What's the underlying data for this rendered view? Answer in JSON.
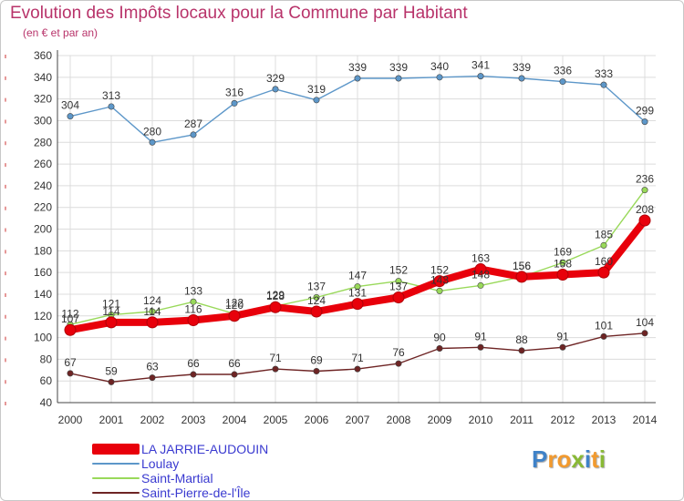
{
  "title": "Evolution des Impôts locaux pour la Commune par Habitant",
  "subtitle": "(en € et par an)",
  "brand": {
    "letters": [
      {
        "ch": "P",
        "color": "#3f82c8"
      },
      {
        "ch": "r",
        "color": "#f29a2e"
      },
      {
        "ch": "o",
        "color": "#f29a2e"
      },
      {
        "ch": "x",
        "color": "#89b935"
      },
      {
        "ch": "i",
        "color": "#3f82c8"
      },
      {
        "ch": "t",
        "color": "#f29a2e"
      },
      {
        "ch": "i",
        "color": "#89b935"
      }
    ]
  },
  "chart_data": {
    "type": "line",
    "categories": [
      "2000",
      "2001",
      "2002",
      "2003",
      "2004",
      "2005",
      "2006",
      "2007",
      "2008",
      "2009",
      "2010",
      "2011",
      "2012",
      "2013",
      "2014"
    ],
    "ylim": [
      40,
      360
    ],
    "yticks": [
      40,
      60,
      80,
      100,
      120,
      140,
      160,
      180,
      200,
      220,
      240,
      260,
      280,
      300,
      320,
      340,
      360
    ],
    "grid": true,
    "legend_position": "bottom-left",
    "series": [
      {
        "name": "Saint-Pierre-de-l'Île",
        "color": "#6e2424",
        "weight": "thin",
        "values": [
          67,
          59,
          63,
          66,
          66,
          71,
          69,
          71,
          76,
          90,
          91,
          88,
          91,
          101,
          104
        ]
      },
      {
        "name": "Saint-Martial",
        "color": "#99d95a",
        "weight": "thin",
        "values": [
          112,
          121,
          124,
          133,
          122,
          129,
          137,
          147,
          152,
          143,
          148,
          156,
          169,
          185,
          236
        ]
      },
      {
        "name": "Loulay",
        "color": "#5d97c9",
        "weight": "thin",
        "values": [
          304,
          313,
          280,
          287,
          316,
          329,
          319,
          339,
          339,
          340,
          341,
          339,
          336,
          333,
          299
        ]
      },
      {
        "name": "LA JARRIE-AUDOUIN",
        "color": "#e8000b",
        "weight": "thick",
        "values": [
          107,
          114,
          114,
          116,
          120,
          128,
          124,
          131,
          137,
          152,
          163,
          156,
          158,
          160,
          208
        ]
      }
    ],
    "legend_order": [
      "LA JARRIE-AUDOUIN",
      "Loulay",
      "Saint-Martial",
      "Saint-Pierre-de-l'Île"
    ]
  }
}
